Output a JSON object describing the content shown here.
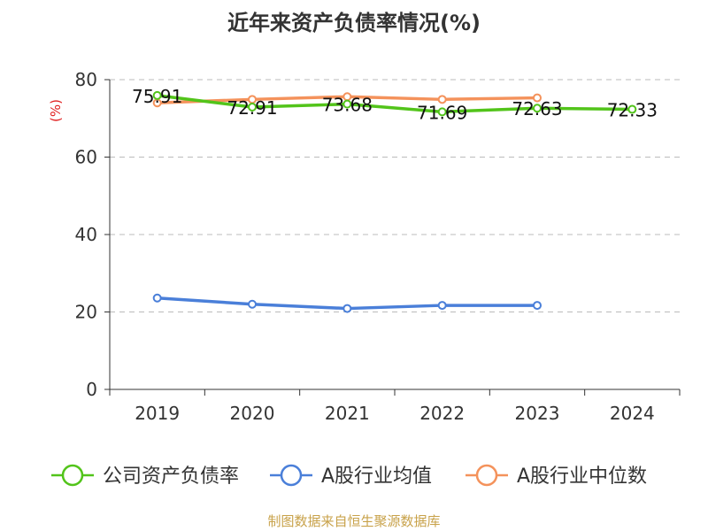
{
  "chart_data": {
    "type": "line",
    "title": "近年来资产负债率情况(%)",
    "ylabel": "(%)",
    "xlabel": "",
    "categories": [
      "2019",
      "2020",
      "2021",
      "2022",
      "2023",
      "2024"
    ],
    "ylim": [
      0,
      80
    ],
    "yticks": [
      0,
      20,
      40,
      60,
      80
    ],
    "grid": true,
    "legend_position": "bottom",
    "series": [
      {
        "name": "公司资产负债率",
        "color": "#52c41a",
        "values": [
          75.91,
          72.91,
          73.68,
          71.69,
          72.63,
          72.33
        ],
        "show_labels": true
      },
      {
        "name": "A股行业均值",
        "color": "#4a7fd9",
        "values": [
          23.6,
          22.0,
          20.9,
          21.7,
          21.7,
          null
        ],
        "show_labels": false
      },
      {
        "name": "A股行业中位数",
        "color": "#f4925b",
        "values": [
          74.0,
          74.9,
          75.6,
          74.9,
          75.3,
          null
        ],
        "show_labels": false
      }
    ]
  },
  "source": "制图数据来自恒生聚源数据库"
}
